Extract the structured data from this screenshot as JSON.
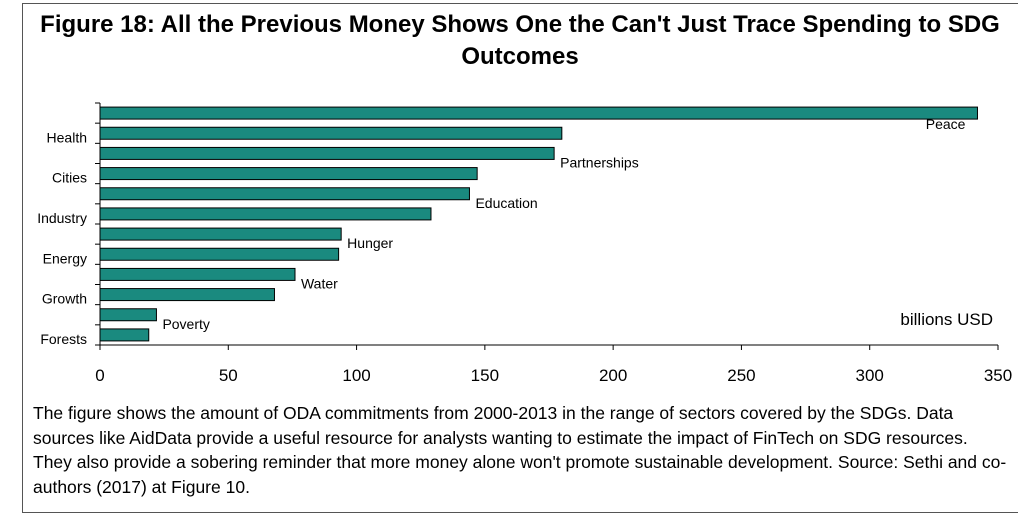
{
  "title": "Figure 18: All the Previous Money Shows One the Can't Just Trace Spending to SDG Outcomes",
  "caption": "The figure shows the amount of ODA commitments from 2000-2013 in the range of sectors covered by the SDGs. Data sources like AidData provide a useful resource for analysts wanting to estimate the impact of FinTech on SDG resources. They also provide a sobering reminder that more money alone won't promote sustainable development. Source: Sethi and co-authors (2017) at Figure 10.",
  "colors": {
    "bar_fill": "#1a8a7f",
    "bar_stroke": "#000000"
  },
  "chart_data": {
    "type": "bar",
    "orientation": "horizontal",
    "unit_label": "billions USD",
    "xlim": [
      0,
      350
    ],
    "xticks": [
      0,
      50,
      100,
      150,
      200,
      250,
      300,
      350
    ],
    "categories": [
      "Peace",
      "Health",
      "Partnerships",
      "Cities",
      "Education",
      "Industry",
      "Hunger",
      "Energy",
      "Water",
      "Growth",
      "Poverty",
      "Forests"
    ],
    "values": [
      342,
      180,
      177,
      147,
      144,
      129,
      94,
      93,
      76,
      68,
      22,
      19
    ],
    "label_side": [
      "inside",
      "left",
      "right",
      "left",
      "right",
      "left",
      "right",
      "left",
      "right",
      "left",
      "right",
      "left"
    ]
  }
}
